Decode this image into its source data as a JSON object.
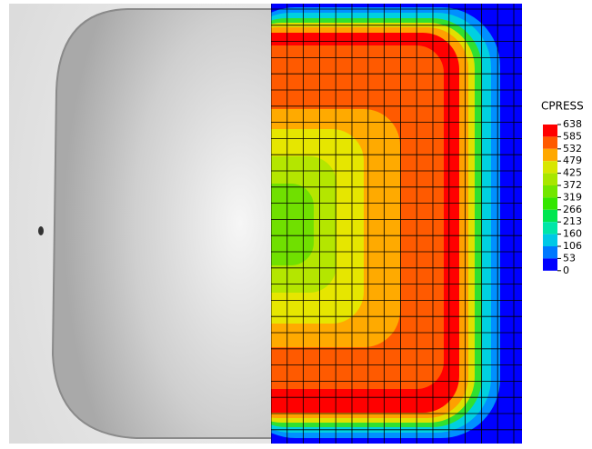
{
  "legend": {
    "title": "CPRESS",
    "labels": [
      638,
      585,
      532,
      479,
      425,
      372,
      319,
      266,
      213,
      160,
      106,
      53,
      0
    ],
    "colors": [
      "#ff0000",
      "#ff5a00",
      "#ffa800",
      "#d8e600",
      "#a8e600",
      "#72e600",
      "#34e600",
      "#00e650",
      "#00e6a8",
      "#00c8e6",
      "#0078ff",
      "#0000ff"
    ]
  }
}
